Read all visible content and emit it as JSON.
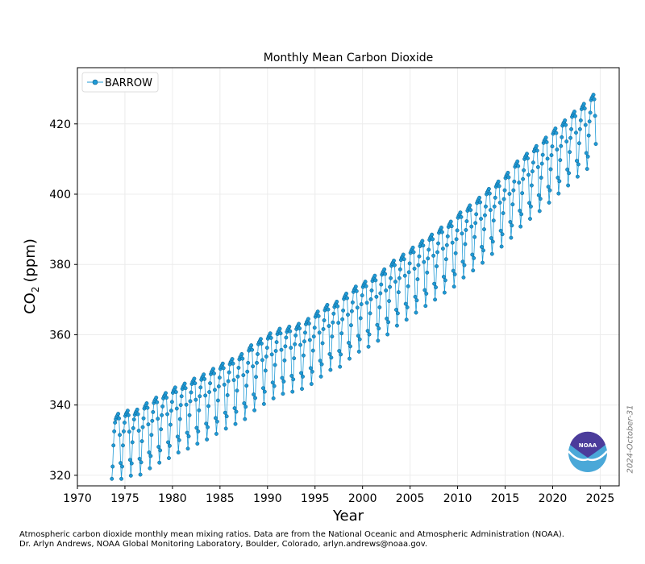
{
  "chart_data": {
    "type": "line",
    "title": "Monthly Mean Carbon Dioxide",
    "xlabel": "Year",
    "ylabel_main": "CO",
    "ylabel_sub": "2",
    "ylabel_unit": "(ppm)",
    "xlim": [
      1970,
      2027
    ],
    "ylim": [
      317,
      436
    ],
    "xticks": [
      1970,
      1975,
      1980,
      1985,
      1990,
      1995,
      2000,
      2005,
      2010,
      2015,
      2020,
      2025
    ],
    "yticks": [
      320,
      340,
      360,
      380,
      400,
      420
    ],
    "grid": true,
    "legend_position": "top-left",
    "series": [
      {
        "name": "BARROW",
        "color": "#1f9ad6",
        "marker": "circle",
        "annual_means": [
          {
            "year": 1974,
            "value": 331.0
          },
          {
            "year": 1975,
            "value": 331.9
          },
          {
            "year": 1976,
            "value": 332.2
          },
          {
            "year": 1977,
            "value": 334.0
          },
          {
            "year": 1978,
            "value": 335.6
          },
          {
            "year": 1979,
            "value": 336.9
          },
          {
            "year": 1980,
            "value": 338.5
          },
          {
            "year": 1981,
            "value": 339.6
          },
          {
            "year": 1982,
            "value": 341.0
          },
          {
            "year": 1983,
            "value": 342.2
          },
          {
            "year": 1984,
            "value": 343.8
          },
          {
            "year": 1985,
            "value": 345.3
          },
          {
            "year": 1986,
            "value": 346.6
          },
          {
            "year": 1987,
            "value": 348.0
          },
          {
            "year": 1988,
            "value": 350.5
          },
          {
            "year": 1989,
            "value": 352.3
          },
          {
            "year": 1990,
            "value": 353.9
          },
          {
            "year": 1991,
            "value": 355.2
          },
          {
            "year": 1992,
            "value": 355.8
          },
          {
            "year": 1993,
            "value": 356.6
          },
          {
            "year": 1994,
            "value": 358.0
          },
          {
            "year": 1995,
            "value": 360.1
          },
          {
            "year": 1996,
            "value": 362.0
          },
          {
            "year": 1997,
            "value": 362.9
          },
          {
            "year": 1998,
            "value": 365.2
          },
          {
            "year": 1999,
            "value": 367.2
          },
          {
            "year": 2000,
            "value": 368.6
          },
          {
            "year": 2001,
            "value": 370.3
          },
          {
            "year": 2002,
            "value": 372.1
          },
          {
            "year": 2003,
            "value": 374.6
          },
          {
            "year": 2004,
            "value": 376.3
          },
          {
            "year": 2005,
            "value": 378.3
          },
          {
            "year": 2006,
            "value": 380.2
          },
          {
            "year": 2007,
            "value": 382.0
          },
          {
            "year": 2008,
            "value": 384.0
          },
          {
            "year": 2009,
            "value": 385.7
          },
          {
            "year": 2010,
            "value": 388.3
          },
          {
            "year": 2011,
            "value": 390.3
          },
          {
            "year": 2012,
            "value": 392.5
          },
          {
            "year": 2013,
            "value": 395.0
          },
          {
            "year": 2014,
            "value": 397.1
          },
          {
            "year": 2015,
            "value": 399.6
          },
          {
            "year": 2016,
            "value": 402.8
          },
          {
            "year": 2017,
            "value": 405.0
          },
          {
            "year": 2018,
            "value": 407.2
          },
          {
            "year": 2019,
            "value": 409.6
          },
          {
            "year": 2020,
            "value": 412.2
          },
          {
            "year": 2021,
            "value": 414.5
          },
          {
            "year": 2022,
            "value": 417.0
          },
          {
            "year": 2023,
            "value": 419.2
          },
          {
            "year": 2024,
            "value": 421.8
          }
        ],
        "seasonal_offsets": [
          5.0,
          5.6,
          6.0,
          6.5,
          5.2,
          0.5,
          -7.5,
          -12.0,
          -8.5,
          -2.5,
          1.5,
          4.0
        ],
        "first_month": "1973-08",
        "last_month": "2024-07"
      }
    ]
  },
  "footer": {
    "line1": "Atmospheric carbon dioxide monthly mean mixing ratios.  Data are from the National Oceanic and Atmospheric Administration (NOAA).",
    "line2": "Dr. Arlyn Andrews, NOAA Global Monitoring Laboratory, Boulder, Colorado, arlyn.andrews@noaa.gov."
  },
  "datestamp": "2024-October-31",
  "logo": {
    "text": "NOAA",
    "colors": {
      "top": "#4b3c9b",
      "bottom": "#4aa8d8"
    }
  }
}
